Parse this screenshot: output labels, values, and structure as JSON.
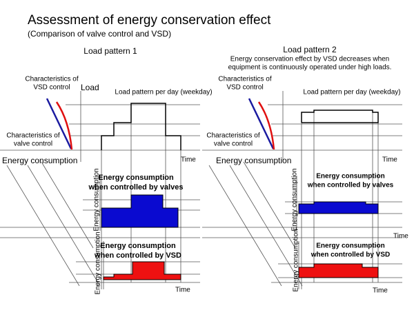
{
  "title": "Assessment of energy conservation effect",
  "subtitle": "(Comparison of valve control and VSD)",
  "panels": [
    {
      "heading": "Load pattern 1",
      "vsd_label": [
        "Characteristics of",
        "VSD control"
      ],
      "load_label": "Load",
      "pattern_label": "Load pattern per day (weekday)",
      "valve_label": [
        "Characteristics of",
        "valve control"
      ],
      "time_labels": [
        "Time",
        "Time"
      ],
      "energy_label": "Energy consumption",
      "valves_title": [
        "Energy consumption",
        "when controlled by valves"
      ],
      "valves_axis": "Energy consumption",
      "vsd_title": [
        "Energy  consumption",
        "when controlled by VSD"
      ],
      "vsd_axis": "Energy consumption"
    },
    {
      "heading": "Load pattern 2",
      "note": [
        "Energy conservation effect by VSD decreases when",
        "equipment is continuously operated under high loads."
      ],
      "vsd_label": [
        "Characteristics of",
        "VSD control"
      ],
      "pattern_label": "Load pattern per day (weekday)",
      "valve_label": [
        "Characteristics of",
        "valve control"
      ],
      "time_labels": [
        "Time",
        "Time",
        "Time"
      ],
      "energy_label": "Energy consumption",
      "valves_title": [
        "Energy consumption",
        "when controlled by valves"
      ],
      "valves_axis": "Energy consumption",
      "vsd_title": [
        "Energy   consumption",
        "when controlled by VSD"
      ],
      "vsd_axis": "Energy consumption"
    }
  ]
}
